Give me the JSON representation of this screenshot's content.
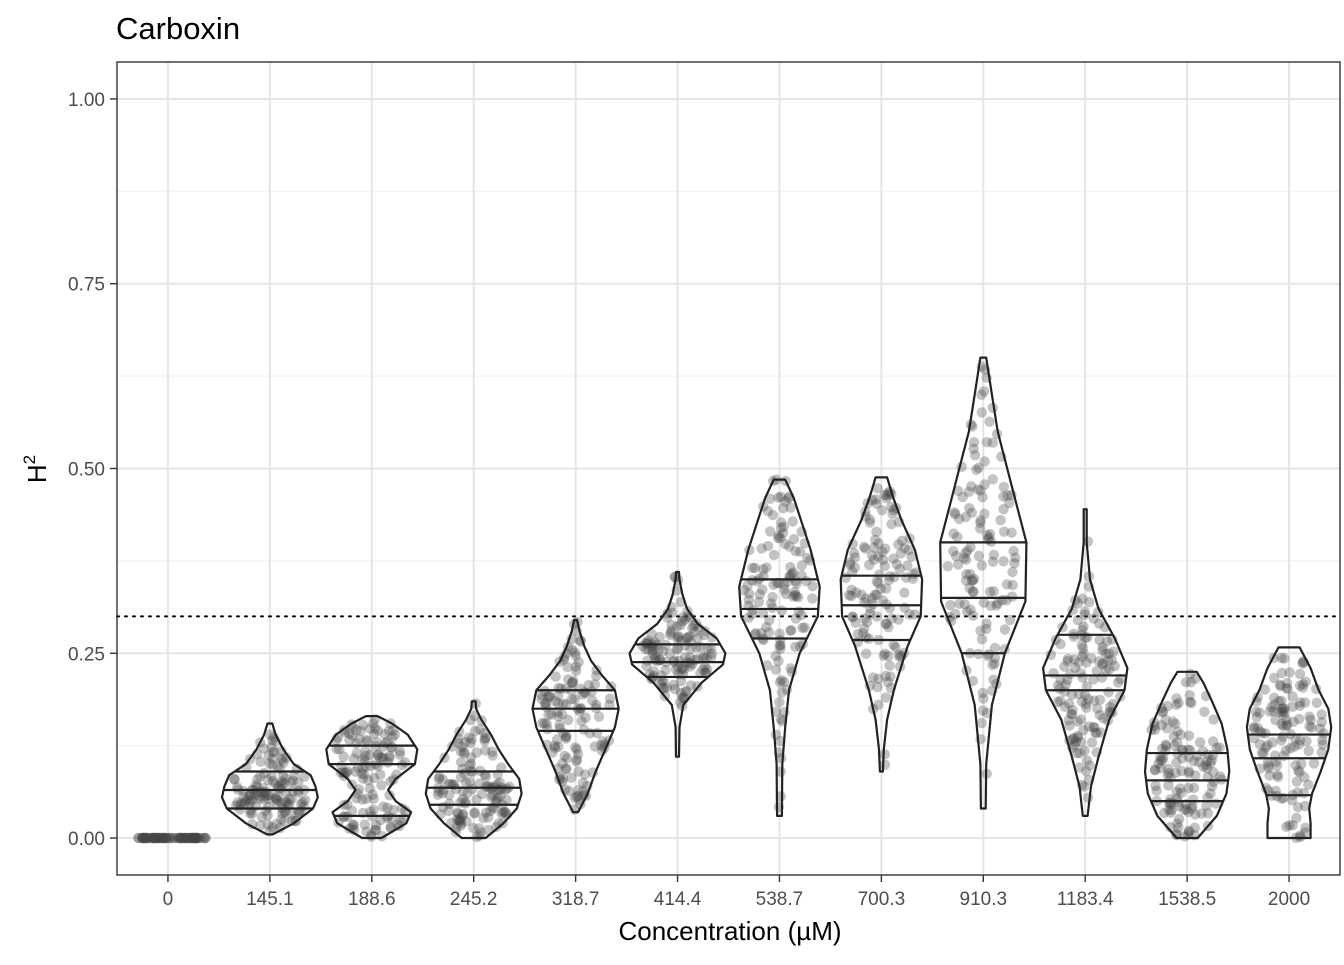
{
  "chart_data": {
    "type": "violin",
    "title": "Carboxin",
    "xlabel": "Concentration (µM)",
    "ylabel_base": "H",
    "ylabel_sup": "2",
    "ylim": [
      -0.05,
      1.05
    ],
    "y_ticks": [
      0.0,
      0.25,
      0.5,
      0.75,
      1.0
    ],
    "y_tick_labels": [
      "0.00",
      "0.25",
      "0.50",
      "0.75",
      "1.00"
    ],
    "reference_line": 0.3,
    "grid": true,
    "colors": {
      "point": "#444444",
      "outline": "#222222",
      "grid_major": "#e5e5e5",
      "grid_minor": "#f2f2f2",
      "panel_border": "#333333"
    },
    "categories": [
      "0",
      "145.1",
      "188.6",
      "245.2",
      "318.7",
      "414.4",
      "538.7",
      "700.3",
      "910.3",
      "1183.4",
      "1538.5",
      "2000"
    ],
    "violins": [
      {
        "label": "0",
        "min": 0.0,
        "max": 0.0,
        "q1": 0.0,
        "median": 0.0,
        "q3": 0.0,
        "profile": [
          [
            0.0,
            0
          ]
        ]
      },
      {
        "label": "145.1",
        "min": 0.005,
        "max": 0.155,
        "q1": 0.04,
        "median": 0.065,
        "q3": 0.09,
        "profile": [
          [
            0.005,
            0.06
          ],
          [
            0.02,
            0.5
          ],
          [
            0.04,
            0.9
          ],
          [
            0.055,
            1.0
          ],
          [
            0.07,
            0.95
          ],
          [
            0.085,
            0.85
          ],
          [
            0.1,
            0.5
          ],
          [
            0.12,
            0.28
          ],
          [
            0.14,
            0.12
          ],
          [
            0.155,
            0.05
          ]
        ]
      },
      {
        "label": "188.6",
        "min": 0.0,
        "max": 0.165,
        "q1": 0.03,
        "median": 0.1,
        "q3": 0.125,
        "profile": [
          [
            0.0,
            0.2
          ],
          [
            0.02,
            0.72
          ],
          [
            0.035,
            0.82
          ],
          [
            0.05,
            0.5
          ],
          [
            0.065,
            0.34
          ],
          [
            0.08,
            0.5
          ],
          [
            0.1,
            0.9
          ],
          [
            0.12,
            0.95
          ],
          [
            0.14,
            0.75
          ],
          [
            0.155,
            0.42
          ],
          [
            0.165,
            0.12
          ]
        ]
      },
      {
        "label": "245.2",
        "min": 0.0,
        "max": 0.185,
        "q1": 0.045,
        "median": 0.068,
        "q3": 0.09,
        "profile": [
          [
            0.0,
            0.25
          ],
          [
            0.02,
            0.62
          ],
          [
            0.04,
            0.9
          ],
          [
            0.06,
            1.0
          ],
          [
            0.08,
            0.95
          ],
          [
            0.1,
            0.72
          ],
          [
            0.12,
            0.52
          ],
          [
            0.14,
            0.36
          ],
          [
            0.16,
            0.16
          ],
          [
            0.175,
            0.05
          ],
          [
            0.185,
            0.04
          ]
        ]
      },
      {
        "label": "318.7",
        "min": 0.035,
        "max": 0.295,
        "q1": 0.145,
        "median": 0.175,
        "q3": 0.2,
        "profile": [
          [
            0.035,
            0.05
          ],
          [
            0.06,
            0.25
          ],
          [
            0.09,
            0.42
          ],
          [
            0.12,
            0.62
          ],
          [
            0.15,
            0.82
          ],
          [
            0.175,
            0.9
          ],
          [
            0.2,
            0.82
          ],
          [
            0.22,
            0.55
          ],
          [
            0.24,
            0.32
          ],
          [
            0.26,
            0.18
          ],
          [
            0.28,
            0.08
          ],
          [
            0.295,
            0.03
          ]
        ]
      },
      {
        "label": "414.4",
        "min": 0.11,
        "max": 0.36,
        "q1": 0.218,
        "median": 0.238,
        "q3": 0.262,
        "profile": [
          [
            0.11,
            0.02
          ],
          [
            0.15,
            0.04
          ],
          [
            0.18,
            0.12
          ],
          [
            0.21,
            0.5
          ],
          [
            0.235,
            0.95
          ],
          [
            0.25,
            1.0
          ],
          [
            0.27,
            0.82
          ],
          [
            0.29,
            0.42
          ],
          [
            0.31,
            0.2
          ],
          [
            0.33,
            0.1
          ],
          [
            0.35,
            0.04
          ],
          [
            0.36,
            0.02
          ]
        ]
      },
      {
        "label": "538.7",
        "min": 0.03,
        "max": 0.485,
        "q1": 0.27,
        "median": 0.31,
        "q3": 0.35,
        "profile": [
          [
            0.03,
            0.05
          ],
          [
            0.1,
            0.06
          ],
          [
            0.15,
            0.12
          ],
          [
            0.2,
            0.2
          ],
          [
            0.25,
            0.42
          ],
          [
            0.3,
            0.8
          ],
          [
            0.34,
            0.84
          ],
          [
            0.39,
            0.65
          ],
          [
            0.43,
            0.45
          ],
          [
            0.46,
            0.3
          ],
          [
            0.485,
            0.12
          ]
        ]
      },
      {
        "label": "700.3",
        "min": 0.09,
        "max": 0.488,
        "q1": 0.268,
        "median": 0.315,
        "q3": 0.355,
        "profile": [
          [
            0.09,
            0.03
          ],
          [
            0.12,
            0.05
          ],
          [
            0.16,
            0.12
          ],
          [
            0.2,
            0.26
          ],
          [
            0.26,
            0.55
          ],
          [
            0.3,
            0.82
          ],
          [
            0.35,
            0.85
          ],
          [
            0.39,
            0.7
          ],
          [
            0.43,
            0.42
          ],
          [
            0.46,
            0.25
          ],
          [
            0.488,
            0.12
          ]
        ]
      },
      {
        "label": "910.3",
        "min": 0.04,
        "max": 0.65,
        "q1": 0.25,
        "median": 0.325,
        "q3": 0.4,
        "profile": [
          [
            0.04,
            0.05
          ],
          [
            0.1,
            0.06
          ],
          [
            0.18,
            0.18
          ],
          [
            0.25,
            0.45
          ],
          [
            0.32,
            0.88
          ],
          [
            0.4,
            0.9
          ],
          [
            0.45,
            0.7
          ],
          [
            0.5,
            0.5
          ],
          [
            0.55,
            0.3
          ],
          [
            0.6,
            0.18
          ],
          [
            0.65,
            0.06
          ]
        ]
      },
      {
        "label": "1183.4",
        "min": 0.03,
        "max": 0.445,
        "q1": 0.2,
        "median": 0.22,
        "q3": 0.275,
        "profile": [
          [
            0.03,
            0.05
          ],
          [
            0.07,
            0.12
          ],
          [
            0.11,
            0.28
          ],
          [
            0.16,
            0.5
          ],
          [
            0.2,
            0.82
          ],
          [
            0.23,
            0.88
          ],
          [
            0.27,
            0.62
          ],
          [
            0.31,
            0.28
          ],
          [
            0.35,
            0.1
          ],
          [
            0.4,
            0.03
          ],
          [
            0.445,
            0.03
          ]
        ]
      },
      {
        "label": "1538.5",
        "min": 0.0,
        "max": 0.225,
        "q1": 0.05,
        "median": 0.078,
        "q3": 0.115,
        "profile": [
          [
            0.0,
            0.22
          ],
          [
            0.03,
            0.62
          ],
          [
            0.06,
            0.82
          ],
          [
            0.09,
            0.88
          ],
          [
            0.12,
            0.84
          ],
          [
            0.155,
            0.72
          ],
          [
            0.185,
            0.52
          ],
          [
            0.21,
            0.34
          ],
          [
            0.225,
            0.2
          ]
        ]
      },
      {
        "label": "2000",
        "min": 0.0,
        "max": 0.258,
        "q1": 0.058,
        "median": 0.108,
        "q3": 0.14,
        "profile": [
          [
            0.0,
            0.45
          ],
          [
            0.02,
            0.45
          ],
          [
            0.04,
            0.42
          ],
          [
            0.06,
            0.48
          ],
          [
            0.09,
            0.66
          ],
          [
            0.12,
            0.82
          ],
          [
            0.15,
            0.88
          ],
          [
            0.175,
            0.82
          ],
          [
            0.2,
            0.62
          ],
          [
            0.23,
            0.45
          ],
          [
            0.258,
            0.22
          ]
        ]
      }
    ]
  }
}
